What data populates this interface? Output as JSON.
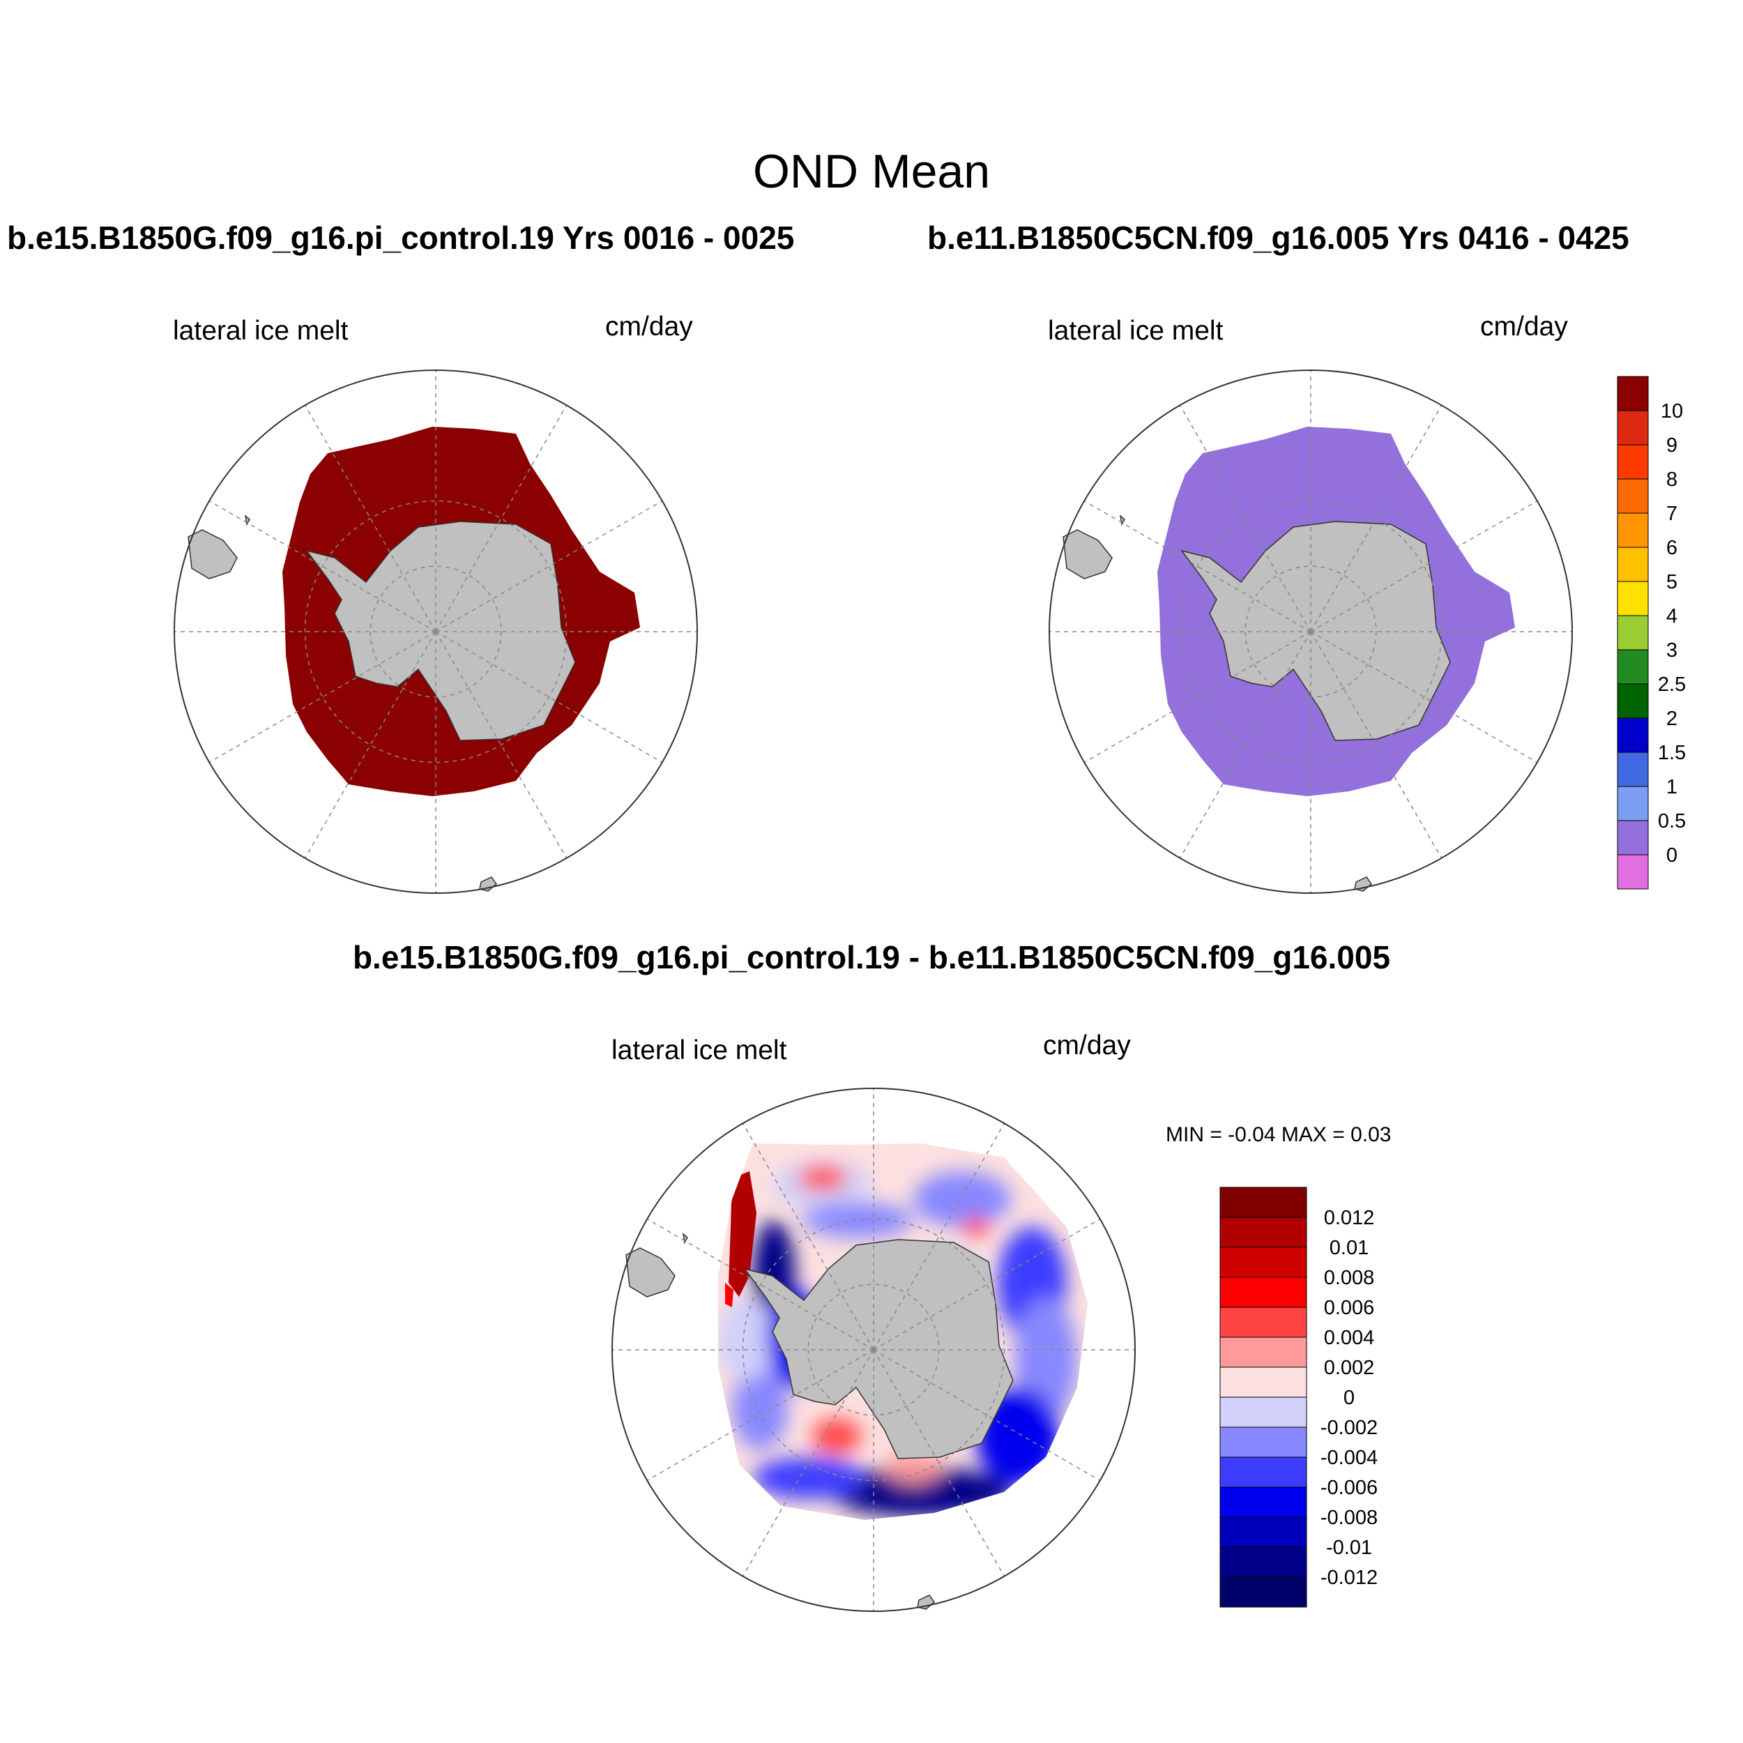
{
  "main_title": "OND Mean",
  "panels": [
    {
      "title": "b.e15.B1850G.f09_g16.pi_control.19  Yrs 0016 - 0025",
      "left_label": "lateral ice melt",
      "right_label": "cm/day",
      "fill_color": "#8b0000"
    },
    {
      "title": "b.e11.B1850C5CN.f09_g16.005  Yrs 0416 - 0425",
      "left_label": "lateral ice melt",
      "right_label": "cm/day",
      "fill_color": "#9370db"
    }
  ],
  "difference": {
    "title": "b.e15.B1850G.f09_g16.pi_control.19 - b.e11.B1850C5CN.f09_g16.005",
    "left_label": "lateral ice melt",
    "right_label": "cm/day",
    "minmax": "MIN =  -0.04 MAX =   0.03"
  },
  "colorbar_top": {
    "labels": [
      "10",
      "9",
      "8",
      "7",
      "6",
      "5",
      "4",
      "3",
      "2.5",
      "2",
      "1.5",
      "1",
      "0.5",
      "0"
    ],
    "colors": [
      "#8b0000",
      "#dc2a10",
      "#ff3a00",
      "#ff6a00",
      "#ff9500",
      "#ffc000",
      "#ffe100",
      "#9acd32",
      "#228b22",
      "#006400",
      "#0000cd",
      "#4169e1",
      "#7b9ef0",
      "#9370db",
      "#e070e0"
    ]
  },
  "colorbar_diff": {
    "labels": [
      "0.012",
      "0.01",
      "0.008",
      "0.006",
      "0.004",
      "0.002",
      "0",
      "-0.002",
      "-0.004",
      "-0.006",
      "-0.008",
      "-0.01",
      "-0.012"
    ],
    "colors": [
      "#800000",
      "#b00000",
      "#d00000",
      "#ff0000",
      "#ff4444",
      "#ff9a9a",
      "#fde0e0",
      "#d0d0fa",
      "#8888ff",
      "#3c3cff",
      "#0000ee",
      "#0000bb",
      "#000088",
      "#00006a"
    ]
  },
  "colors": {
    "land": "#c0c0c0",
    "coast": "#333333",
    "grid": "#888888"
  }
}
